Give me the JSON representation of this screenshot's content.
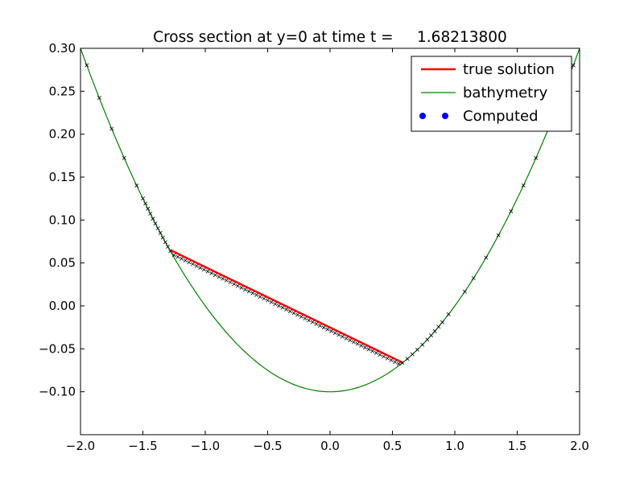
{
  "chart_data": {
    "type": "line",
    "title": "Cross section at y=0 at time t =     1.68213800",
    "xlabel": "",
    "ylabel": "",
    "xlim": [
      -2.0,
      2.0
    ],
    "ylim": [
      -0.15,
      0.3
    ],
    "x_ticks": [
      -2.0,
      -1.5,
      -1.0,
      -0.5,
      0.0,
      0.5,
      1.0,
      1.5,
      2.0
    ],
    "x_tick_labels": [
      "−2.0",
      "−1.5",
      "−1.0",
      "−0.5",
      "0.0",
      "0.5",
      "1.0",
      "1.5",
      "2.0"
    ],
    "y_ticks": [
      -0.1,
      -0.05,
      0.0,
      0.05,
      0.1,
      0.15,
      0.2,
      0.25,
      0.3
    ],
    "y_tick_labels": [
      "−0.10",
      "−0.05",
      "0.00",
      "0.05",
      "0.10",
      "0.15",
      "0.20",
      "0.25",
      "0.30"
    ],
    "legend_position": "top-right",
    "colors": {
      "true_solution": "#ff0000",
      "bathymetry": "#008000",
      "computed": "#0000ff",
      "markers": "#000000"
    },
    "series": [
      {
        "name": "true solution",
        "style": "thick-line",
        "x": [
          -1.28,
          0.58
        ],
        "y": [
          0.065,
          -0.066
        ]
      },
      {
        "name": "bathymetry",
        "style": "thin-line",
        "formula": "0.1*x^2 - 0.1",
        "x": [
          -2.0,
          -1.75,
          -1.5,
          -1.25,
          -1.0,
          -0.75,
          -0.5,
          -0.25,
          0.0,
          0.25,
          0.5,
          0.75,
          1.0,
          1.25,
          1.5,
          1.75,
          2.0
        ],
        "y": [
          0.3,
          0.20625,
          0.125,
          0.05625,
          0.0,
          -0.04375,
          -0.075,
          -0.09375,
          -0.1,
          -0.09375,
          -0.075,
          -0.04375,
          0.0,
          0.05625,
          0.125,
          0.20625,
          0.3
        ]
      },
      {
        "name": "Computed",
        "style": "x-markers",
        "x": [
          -1.95,
          -1.85,
          -1.75,
          -1.65,
          -1.55,
          -1.5,
          -1.48,
          -1.46,
          -1.44,
          -1.42,
          -1.4,
          -1.38,
          -1.36,
          -1.34,
          -1.32,
          -1.3,
          -1.28,
          -1.25,
          -1.22,
          -1.19,
          -1.16,
          -1.13,
          -1.1,
          -1.07,
          -1.04,
          -1.01,
          -0.98,
          -0.95,
          -0.92,
          -0.89,
          -0.86,
          -0.83,
          -0.8,
          -0.77,
          -0.74,
          -0.71,
          -0.68,
          -0.65,
          -0.62,
          -0.59,
          -0.56,
          -0.53,
          -0.5,
          -0.47,
          -0.44,
          -0.41,
          -0.38,
          -0.35,
          -0.32,
          -0.29,
          -0.26,
          -0.23,
          -0.2,
          -0.17,
          -0.14,
          -0.11,
          -0.08,
          -0.05,
          -0.02,
          0.01,
          0.04,
          0.07,
          0.1,
          0.13,
          0.16,
          0.19,
          0.22,
          0.25,
          0.28,
          0.31,
          0.34,
          0.37,
          0.4,
          0.43,
          0.46,
          0.49,
          0.52,
          0.55,
          0.58,
          0.62,
          0.66,
          0.7,
          0.74,
          0.78,
          0.81,
          0.84,
          0.87,
          0.9,
          0.95,
          1.08,
          1.15,
          1.25,
          1.35,
          1.45,
          1.55,
          1.65,
          1.75,
          1.95
        ],
        "y": [
          0.2803,
          0.2423,
          0.2063,
          0.1723,
          0.1403,
          0.125,
          0.1192,
          0.1132,
          0.1074,
          0.1016,
          0.096,
          0.0904,
          0.085,
          0.0796,
          0.0742,
          0.069,
          0.0638,
          0.0592,
          0.0571,
          0.055,
          0.0529,
          0.0508,
          0.0487,
          0.0465,
          0.0444,
          0.0423,
          0.0402,
          0.0381,
          0.036,
          0.0339,
          0.0318,
          0.0297,
          0.0276,
          0.0254,
          0.0233,
          0.0212,
          0.0191,
          0.017,
          0.0149,
          0.0128,
          0.0107,
          0.0086,
          0.0065,
          0.0043,
          0.0022,
          0.0001,
          -0.002,
          -0.0041,
          -0.0062,
          -0.0083,
          -0.0104,
          -0.0125,
          -0.0146,
          -0.0168,
          -0.0189,
          -0.021,
          -0.0231,
          -0.0252,
          -0.0273,
          -0.0294,
          -0.0315,
          -0.0336,
          -0.0357,
          -0.0379,
          -0.04,
          -0.0421,
          -0.0442,
          -0.0463,
          -0.0484,
          -0.0505,
          -0.0526,
          -0.0547,
          -0.0568,
          -0.059,
          -0.0611,
          -0.0632,
          -0.0653,
          -0.0674,
          -0.0664,
          -0.0616,
          -0.0564,
          -0.051,
          -0.0452,
          -0.0392,
          -0.0344,
          -0.0294,
          -0.0243,
          -0.019,
          -0.0097,
          0.0166,
          0.0323,
          0.0563,
          0.0823,
          0.1103,
          0.1403,
          0.1723,
          0.2063,
          0.2803
        ]
      }
    ]
  }
}
